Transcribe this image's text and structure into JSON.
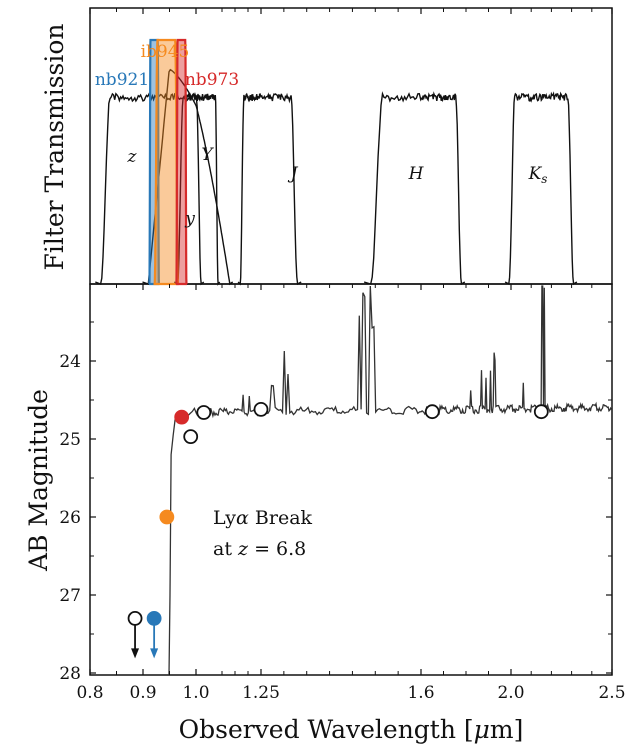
{
  "chart_data": [
    {
      "type": "line",
      "panel": "filter-transmission",
      "ylabel": "Filter Transmission",
      "filters": [
        {
          "name": "z",
          "label": "z",
          "italic": true,
          "range": [
            0.82,
            1.02
          ],
          "color": "#111111"
        },
        {
          "name": "y",
          "label": "y",
          "italic": true,
          "range": [
            0.91,
            1.13
          ],
          "color": "#111111",
          "shape": "decay"
        },
        {
          "name": "Y",
          "label": "Y",
          "italic": true,
          "range": [
            0.965,
            1.085
          ],
          "color": "#111111"
        },
        {
          "name": "J",
          "label": "J",
          "italic": true,
          "range": [
            1.17,
            1.33
          ],
          "color": "#111111"
        },
        {
          "name": "H",
          "label": "H",
          "italic": true,
          "range": [
            1.49,
            1.78
          ],
          "color": "#111111"
        },
        {
          "name": "Ks",
          "label": "K",
          "sub": "s",
          "italic": true,
          "range": [
            1.99,
            2.31
          ],
          "color": "#111111"
        },
        {
          "name": "nb921",
          "label": "nb921",
          "range": [
            0.912,
            0.93
          ],
          "color": "#2878b8",
          "fill": true
        },
        {
          "name": "ib945",
          "label": "ib945",
          "range": [
            0.922,
            0.966
          ],
          "color": "#f58a1f",
          "fill": true
        },
        {
          "name": "nb973",
          "label": "nb973",
          "range": [
            0.963,
            0.982
          ],
          "color": "#d62a2a",
          "fill": true
        }
      ]
    },
    {
      "type": "line",
      "panel": "spectrum",
      "xlabel": "Observed Wavelength [",
      "xlabel_mu": "μ",
      "xlabel_unit": "m]",
      "ylabel": "AB Magnitude",
      "xlim": [
        0.8,
        2.5
      ],
      "ylim": [
        28,
        23.1
      ],
      "x_ticks": [
        0.8,
        0.9,
        1.0,
        1.25,
        1.6,
        2.0,
        2.5
      ],
      "x_tick_labels": [
        "0.8",
        "0.9",
        "1.0",
        "1.25",
        "1.6",
        "2.0",
        "2.5"
      ],
      "y_ticks": [
        24,
        25,
        26,
        27,
        28
      ],
      "y_tick_labels": [
        "24",
        "25",
        "26",
        "27",
        "28"
      ],
      "spectrum": {
        "continuum_mag": 24.68,
        "break_wavelength": 0.949,
        "emission_lines": [
          [
            1.18,
            0.25
          ],
          [
            1.205,
            0.2
          ],
          [
            1.275,
            0.3
          ],
          [
            1.3,
            0.8
          ],
          [
            1.31,
            0.5
          ],
          [
            1.465,
            1.2
          ],
          [
            1.475,
            1.5
          ],
          [
            1.49,
            2.0
          ],
          [
            1.495,
            1.1
          ],
          [
            1.82,
            0.2
          ],
          [
            1.87,
            0.5
          ],
          [
            1.89,
            0.4
          ],
          [
            1.91,
            0.5
          ],
          [
            1.925,
            0.7
          ],
          [
            1.93,
            0.6
          ],
          [
            2.06,
            0.3
          ],
          [
            2.155,
            1.8
          ],
          [
            2.165,
            1.5
          ]
        ]
      },
      "photometry": [
        {
          "x": 0.885,
          "y": 27.3,
          "filled": false,
          "upper_limit": true,
          "color": "#111111"
        },
        {
          "x": 0.921,
          "y": 27.3,
          "filled": true,
          "upper_limit": true,
          "color": "#2878b8"
        },
        {
          "x": 0.945,
          "y": 26.0,
          "filled": true,
          "upper_limit": false,
          "color": "#f58a1f"
        },
        {
          "x": 0.973,
          "y": 24.72,
          "filled": true,
          "upper_limit": false,
          "color": "#d62a2a"
        },
        {
          "x": 0.99,
          "y": 24.97,
          "filled": false,
          "upper_limit": false,
          "color": "#111111"
        },
        {
          "x": 1.03,
          "y": 24.66,
          "filled": false,
          "upper_limit": false,
          "color": "#111111"
        },
        {
          "x": 1.25,
          "y": 24.62,
          "filled": false,
          "upper_limit": false,
          "color": "#111111"
        },
        {
          "x": 1.65,
          "y": 24.65,
          "filled": false,
          "upper_limit": false,
          "color": "#111111"
        },
        {
          "x": 2.15,
          "y": 24.65,
          "filled": false,
          "upper_limit": false,
          "color": "#111111"
        }
      ],
      "annotation": {
        "line1_pre": "Ly",
        "line1_alpha": "α",
        "line1_post": " Break",
        "line2_pre": "at ",
        "line2_z": "z",
        "line2_post": " = 6.8"
      }
    }
  ]
}
